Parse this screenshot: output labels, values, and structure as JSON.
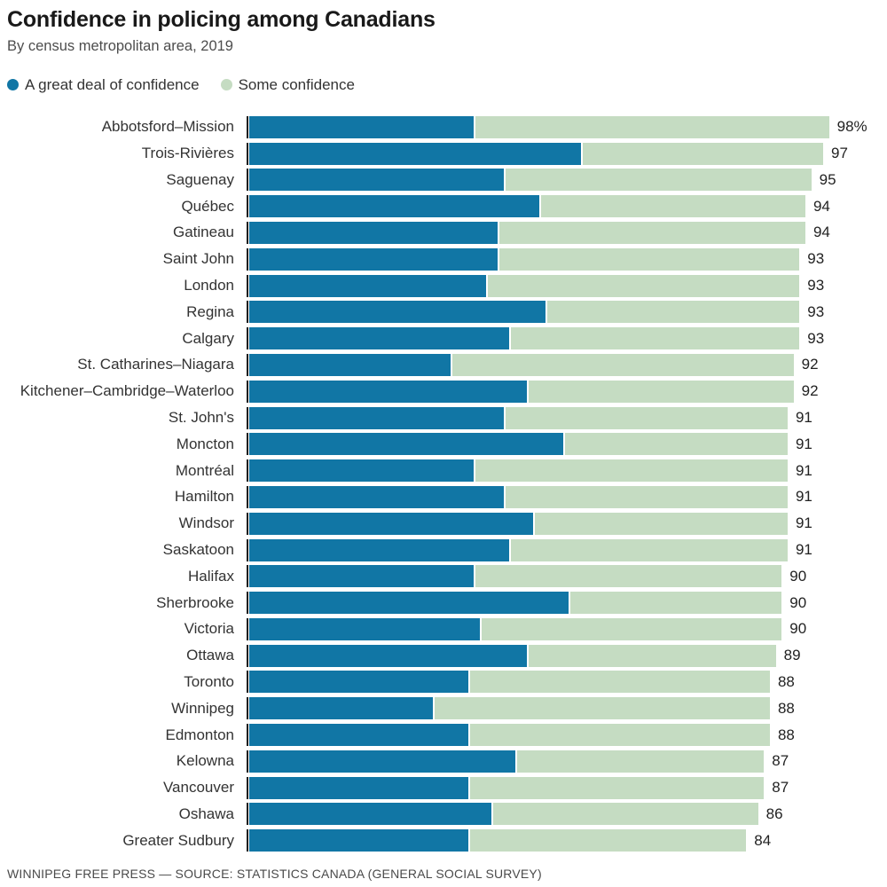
{
  "header": {
    "title": "Confidence in policing among Canadians",
    "subtitle": "By census metropolitan area, 2019"
  },
  "legend": {
    "items": [
      {
        "label": "A great deal of confidence",
        "color": "#1176a5"
      },
      {
        "label": "Some confidence",
        "color": "#c5dcc2"
      }
    ]
  },
  "footer": {
    "source_line": "WINNIPEG FREE PRESS — SOURCE: STATISTICS CANADA (GENERAL SOCIAL SURVEY)"
  },
  "chart_data": {
    "type": "bar",
    "stacked": true,
    "orientation": "horizontal",
    "title": "Confidence in policing among Canadians",
    "subtitle": "By census metropolitan area, 2019",
    "xlim": [
      0,
      100
    ],
    "grid": false,
    "legend_position": "top",
    "categories": [
      "Abbotsford–Mission",
      "Trois-Rivières",
      "Saguenay",
      "Québec",
      "Gatineau",
      "Saint John",
      "London",
      "Regina",
      "Calgary",
      "St. Catharines–Niagara",
      "Kitchener–Cambridge–Waterloo",
      "St. John's",
      "Moncton",
      "Montréal",
      "Hamilton",
      "Windsor",
      "Saskatoon",
      "Halifax",
      "Sherbrooke",
      "Victoria",
      "Ottawa",
      "Toronto",
      "Winnipeg",
      "Edmonton",
      "Kelowna",
      "Vancouver",
      "Oshawa",
      "Greater Sudbury"
    ],
    "series": [
      {
        "name": "A great deal of confidence",
        "color": "#1176a5",
        "values": [
          38,
          56,
          43,
          49,
          42,
          42,
          40,
          50,
          44,
          34,
          47,
          43,
          53,
          38,
          43,
          48,
          44,
          38,
          54,
          39,
          47,
          37,
          31,
          37,
          45,
          37,
          41,
          37
        ]
      },
      {
        "name": "Some confidence",
        "color": "#c5dcc2",
        "values": [
          60,
          41,
          52,
          45,
          52,
          51,
          53,
          43,
          49,
          58,
          45,
          48,
          38,
          53,
          48,
          43,
          47,
          52,
          36,
          51,
          42,
          51,
          57,
          51,
          42,
          50,
          45,
          47
        ]
      }
    ],
    "totals": [
      98,
      97,
      95,
      94,
      94,
      93,
      93,
      93,
      93,
      92,
      92,
      91,
      91,
      91,
      91,
      91,
      91,
      90,
      90,
      90,
      89,
      88,
      88,
      88,
      87,
      87,
      86,
      84
    ],
    "total_labels": [
      "98%",
      "97",
      "95",
      "94",
      "94",
      "93",
      "93",
      "93",
      "93",
      "92",
      "92",
      "91",
      "91",
      "91",
      "91",
      "91",
      "91",
      "90",
      "90",
      "90",
      "89",
      "88",
      "88",
      "88",
      "87",
      "87",
      "86",
      "84"
    ]
  }
}
